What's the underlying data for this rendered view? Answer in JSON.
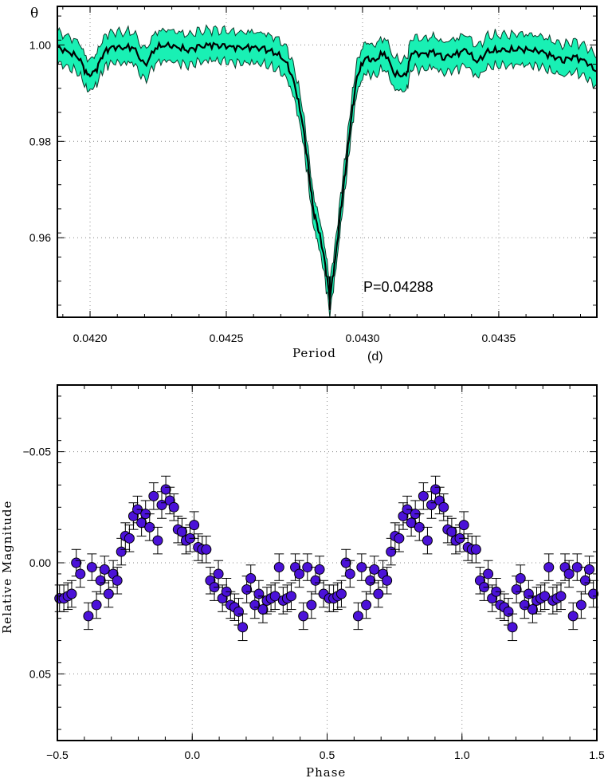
{
  "chart_data": [
    {
      "type": "line",
      "xlabel": "Period",
      "xlabel_unit": "(d)",
      "ylabel": "θ",
      "xlim": [
        0.04188,
        0.04386
      ],
      "ylim": [
        0.9435,
        1.008
      ],
      "xticks": [
        0.042,
        0.0425,
        0.043,
        0.0435
      ],
      "xtick_labels": [
        "0.0420",
        "0.0425",
        "0.0430",
        "0.0435"
      ],
      "yticks": [
        0.96,
        0.98,
        1.0
      ],
      "ytick_labels": [
        "0.96",
        "0.98",
        "1.00"
      ],
      "grid": true,
      "annotation": "P=0.04288",
      "best_period": 0.04288,
      "band_color": "#19f0b4",
      "line_color": "#000000",
      "series": [
        {
          "x": [
            0.04188,
            0.04192,
            0.04196,
            0.04199,
            0.04202,
            0.04205,
            0.04208,
            0.04212,
            0.04216,
            0.0422,
            0.04224,
            0.04228,
            0.04232,
            0.04236,
            0.0424,
            0.04244,
            0.04248,
            0.04252,
            0.04256,
            0.0426,
            0.04264,
            0.04268,
            0.04272,
            0.04275,
            0.04278,
            0.0428,
            0.04282,
            0.04284,
            0.04286,
            0.04288,
            0.0429,
            0.04292,
            0.04294,
            0.04296,
            0.04298,
            0.04301,
            0.04304,
            0.04308,
            0.04312,
            0.04316,
            0.04318,
            0.04322,
            0.04326,
            0.0433,
            0.04334,
            0.04338,
            0.04342,
            0.04346,
            0.0435,
            0.04354,
            0.04358,
            0.04362,
            0.04366,
            0.0437,
            0.04374,
            0.04378,
            0.04382,
            0.04386
          ],
          "y": [
            0.9995,
            0.9985,
            0.9975,
            0.9935,
            0.9945,
            0.9985,
            0.9995,
            0.9995,
            0.9995,
            0.9955,
            0.9995,
            1.0,
            0.9995,
            0.999,
            0.9995,
            1.0,
            1.0,
            0.9995,
            0.9995,
            0.9995,
            0.999,
            0.9985,
            0.9965,
            0.992,
            0.984,
            0.975,
            0.9655,
            0.9615,
            0.9555,
            0.9475,
            0.9555,
            0.9655,
            0.9755,
            0.9855,
            0.9935,
            0.9975,
            0.9965,
            0.9985,
            0.994,
            0.9935,
            0.9985,
            0.998,
            0.9985,
            0.9975,
            0.998,
            0.999,
            0.9965,
            0.9985,
            0.999,
            0.999,
            0.999,
            0.999,
            0.9985,
            0.9975,
            0.997,
            0.9975,
            0.9965,
            0.9945
          ],
          "band": 0.0032
        }
      ]
    },
    {
      "type": "scatter",
      "xlabel": "Phase",
      "ylabel": "Relative Magnitude",
      "xlim": [
        -0.5,
        1.5
      ],
      "ylim": [
        0.08,
        -0.08
      ],
      "xticks": [
        -0.5,
        0.0,
        0.5,
        1.0,
        1.5
      ],
      "xtick_labels": [
        "−0.5",
        "0.0",
        "0.5",
        "1.0",
        "1.5"
      ],
      "yticks": [
        -0.05,
        0.0,
        0.05
      ],
      "ytick_labels": [
        "−0.05",
        "0.00",
        "0.05"
      ],
      "grid": true,
      "marker_color": "#4b12d8",
      "y_inverted": true,
      "error_bar": 0.006,
      "series": [
        {
          "x": [
            -0.492,
            -0.476,
            -0.461,
            -0.447,
            -0.43,
            -0.415,
            -0.385,
            -0.372,
            -0.355,
            -0.34,
            -0.325,
            -0.31,
            -0.293,
            -0.278,
            -0.263,
            -0.248,
            -0.233,
            -0.218,
            -0.203,
            -0.188,
            -0.173,
            -0.158,
            -0.143,
            -0.128,
            -0.113,
            -0.098,
            -0.083,
            -0.068,
            -0.053,
            -0.038,
            -0.023,
            -0.008,
            0.007,
            0.022,
            0.037,
            0.052,
            0.067,
            0.082,
            0.097,
            0.112,
            0.127,
            0.142,
            0.157,
            0.172,
            0.187,
            0.202,
            0.217,
            0.232,
            0.247,
            0.262,
            0.277,
            0.292,
            0.307,
            0.322,
            0.337,
            0.352,
            0.367,
            0.382,
            0.397,
            0.412,
            0.427,
            0.442,
            0.457,
            0.472,
            0.487
          ],
          "y": [
            0.016,
            0.016,
            0.015,
            0.014,
            0.0,
            0.005,
            0.024,
            0.002,
            0.019,
            0.008,
            0.003,
            0.014,
            0.005,
            0.008,
            -0.005,
            -0.012,
            -0.011,
            -0.021,
            -0.024,
            -0.018,
            -0.022,
            -0.016,
            -0.03,
            -0.01,
            -0.026,
            -0.033,
            -0.028,
            -0.025,
            -0.015,
            -0.014,
            -0.01,
            -0.011,
            -0.017,
            -0.007,
            -0.006,
            -0.006,
            0.008,
            0.011,
            0.005,
            0.016,
            0.013,
            0.019,
            0.02,
            0.022,
            0.029,
            0.012,
            0.007,
            0.019,
            0.014,
            0.021,
            0.017,
            0.016,
            0.015,
            0.002,
            0.017,
            0.016,
            0.015,
            0.002,
            0.005,
            0.024,
            0.002,
            0.019,
            0.008,
            0.003,
            0.014
          ]
        }
      ]
    }
  ]
}
